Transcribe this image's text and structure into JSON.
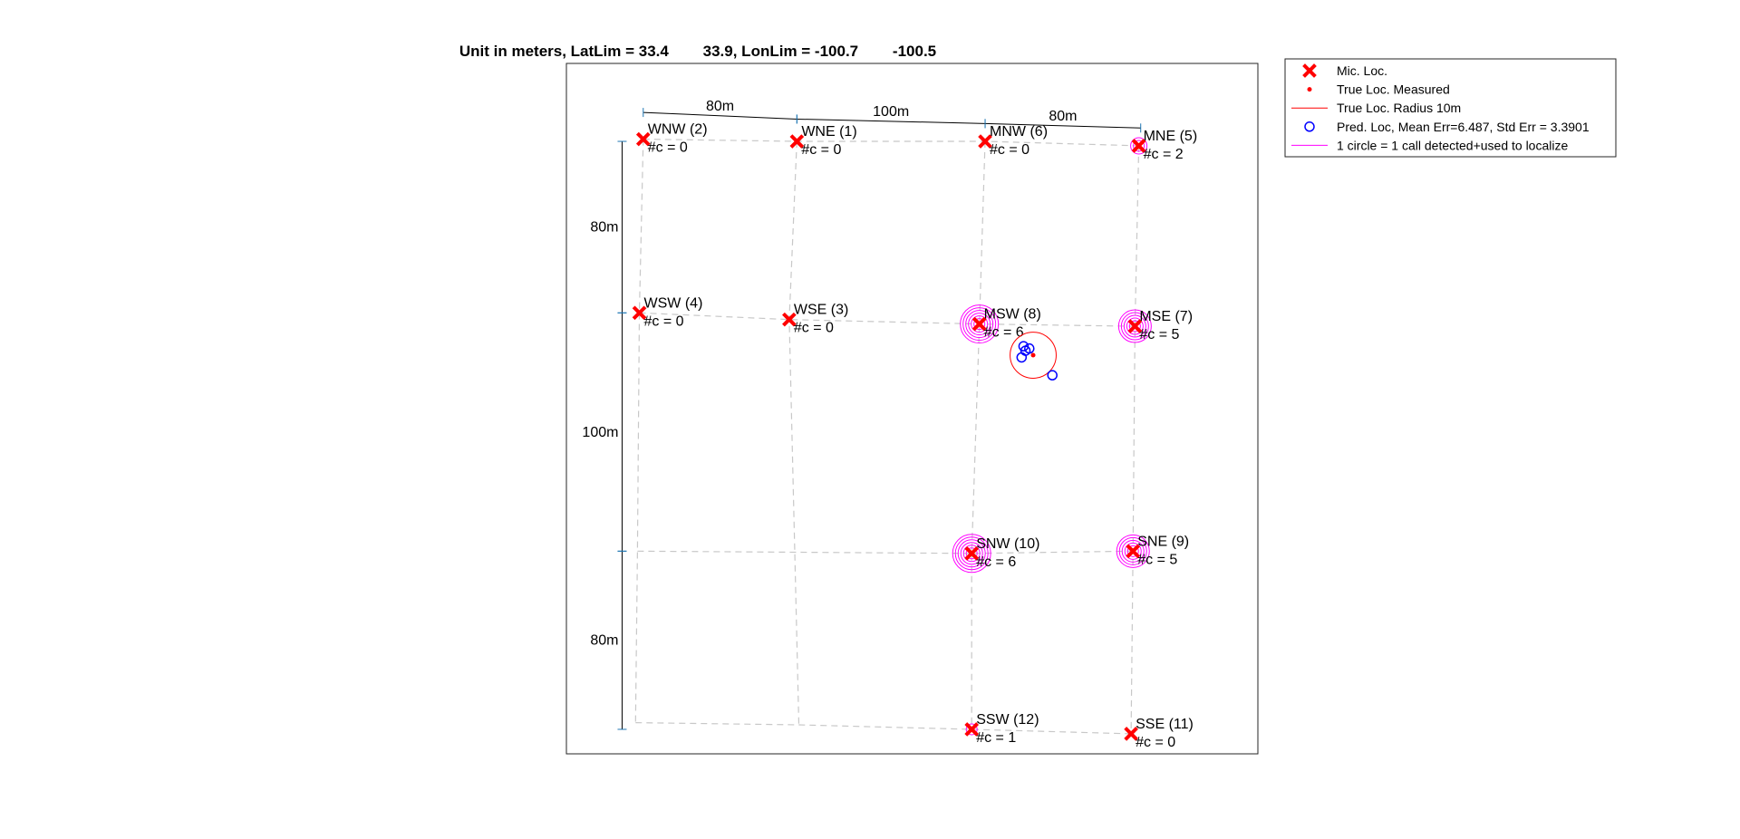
{
  "chart_data": {
    "type": "scatter",
    "title": "Unit in meters, LatLim = 33.4        33.9, LonLim = -100.7        -100.5",
    "xlabel": "",
    "ylabel": "",
    "units": "m",
    "xlim": [
      -40,
      320
    ],
    "ylim": [
      -276,
      34
    ],
    "grid": false,
    "legend_position": "top-right-outside",
    "legend": [
      {
        "key": "mic",
        "label": "Mic. Loc."
      },
      {
        "key": "true_loc",
        "label": "True Loc. Measured"
      },
      {
        "key": "true_radius",
        "label": "True Loc. Radius 10m"
      },
      {
        "key": "pred",
        "label": "Pred. Loc, Mean Err=6.487, Std Err = 3.3901"
      },
      {
        "key": "calls",
        "label": "1 circle = 1 call detected+used to localize"
      }
    ],
    "microphones": [
      {
        "name": "WNW (2)",
        "count_label": "#c = 0",
        "calls": 0,
        "x": 0,
        "y": 0
      },
      {
        "name": "WNE (1)",
        "count_label": "#c = 0",
        "calls": 0,
        "x": 80,
        "y": -1
      },
      {
        "name": "MNW (6)",
        "count_label": "#c = 0",
        "calls": 0,
        "x": 178,
        "y": -1
      },
      {
        "name": "MNE (5)",
        "count_label": "#c = 2",
        "calls": 2,
        "x": 258,
        "y": -3
      },
      {
        "name": "WSW (4)",
        "count_label": "#c = 0",
        "calls": 0,
        "x": -2,
        "y": -78
      },
      {
        "name": "WSE (3)",
        "count_label": "#c = 0",
        "calls": 0,
        "x": 76,
        "y": -81
      },
      {
        "name": "MSW (8)",
        "count_label": "#c = 6",
        "calls": 6,
        "x": 175,
        "y": -83
      },
      {
        "name": "MSE (7)",
        "count_label": "#c = 5",
        "calls": 5,
        "x": 256,
        "y": -84
      },
      {
        "name": "SNW (10)",
        "count_label": "#c = 6",
        "calls": 6,
        "x": 171,
        "y": -186
      },
      {
        "name": "SNE (9)",
        "count_label": "#c = 5",
        "calls": 5,
        "x": 255,
        "y": -185
      },
      {
        "name": "SSW (12)",
        "count_label": "#c = 1",
        "calls": 1,
        "x": 171,
        "y": -265
      },
      {
        "name": "SSE (11)",
        "count_label": "#c = 0",
        "calls": 0,
        "x": 254,
        "y": -267
      }
    ],
    "grid_lines": [
      [
        [
          0,
          0
        ],
        [
          80,
          -1
        ],
        [
          178,
          -1
        ],
        [
          258,
          -3
        ]
      ],
      [
        [
          -2,
          -78
        ],
        [
          76,
          -81
        ],
        [
          175,
          -83
        ],
        [
          256,
          -84
        ]
      ],
      [
        [
          -3,
          -185
        ],
        [
          171,
          -186
        ],
        [
          255,
          -185
        ]
      ],
      [
        [
          -4,
          -262
        ],
        [
          81,
          -263
        ],
        [
          171,
          -265
        ],
        [
          254,
          -267
        ]
      ],
      [
        [
          0,
          0
        ],
        [
          -2,
          -78
        ],
        [
          -3,
          -185
        ],
        [
          -4,
          -262
        ]
      ],
      [
        [
          80,
          -1
        ],
        [
          76,
          -81
        ],
        [
          81,
          -263
        ]
      ],
      [
        [
          178,
          -1
        ],
        [
          175,
          -83
        ],
        [
          171,
          -186
        ],
        [
          171,
          -265
        ]
      ],
      [
        [
          258,
          -3
        ],
        [
          256,
          -84
        ],
        [
          255,
          -185
        ],
        [
          254,
          -267
        ]
      ]
    ],
    "true_location": {
      "x": 203,
      "y": -97,
      "radius_m": 10
    },
    "predicted_locations": [
      {
        "x": 198,
        "y": -93
      },
      {
        "x": 201,
        "y": -94
      },
      {
        "x": 199,
        "y": -95
      },
      {
        "x": 197,
        "y": -98
      },
      {
        "x": 213,
        "y": -106
      }
    ],
    "dimension_marks": {
      "top": [
        {
          "label": "80m",
          "from": [
            0,
            12
          ],
          "to": [
            80,
            9
          ]
        },
        {
          "label": "100m",
          "from": [
            80,
            9
          ],
          "to": [
            178,
            7
          ]
        },
        {
          "label": "80m",
          "from": [
            178,
            7
          ],
          "to": [
            259,
            5
          ]
        }
      ],
      "left": [
        {
          "label": "80m",
          "from": [
            -11,
            -1
          ],
          "to": [
            -11,
            -78
          ]
        },
        {
          "label": "100m",
          "from": [
            -11,
            -78
          ],
          "to": [
            -11,
            -185
          ]
        },
        {
          "label": "80m",
          "from": [
            -11,
            -185
          ],
          "to": [
            -11,
            -265
          ]
        }
      ]
    }
  }
}
